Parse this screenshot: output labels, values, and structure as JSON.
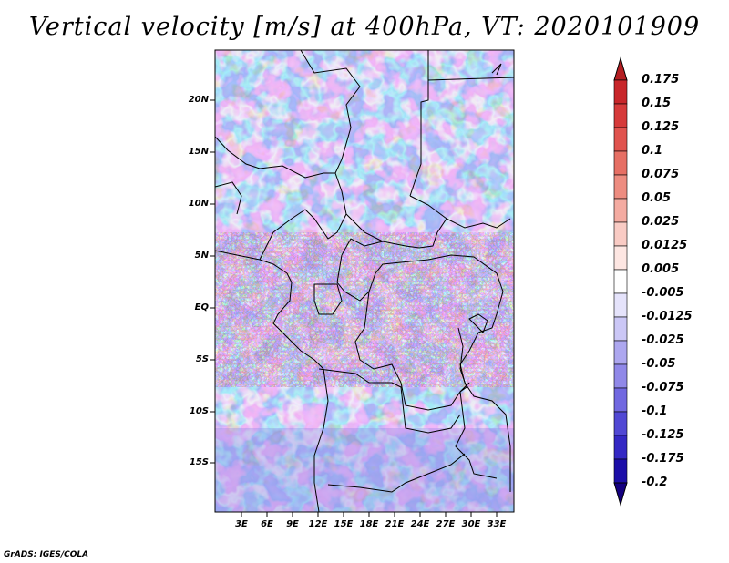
{
  "map": {
    "title": "Vertical velocity [m/s] at 400hPa, VT: 2020101909",
    "credit": "GrADS: IGES/COLA",
    "lat_labels": [
      "20N",
      "15N",
      "10N",
      "5N",
      "EQ",
      "5S",
      "10S",
      "15S"
    ],
    "lat_values": [
      20,
      15,
      10,
      5,
      0,
      -5,
      -10,
      -15
    ],
    "lon_labels": [
      "3E",
      "6E",
      "9E",
      "12E",
      "15E",
      "18E",
      "21E",
      "24E",
      "27E",
      "30E",
      "33E"
    ],
    "lon_values": [
      3,
      6,
      9,
      12,
      15,
      18,
      21,
      24,
      27,
      30,
      33
    ],
    "colorbar_labels": [
      "0.175",
      "0.15",
      "0.125",
      "0.1",
      "0.075",
      "0.05",
      "0.025",
      "0.0125",
      "0.005",
      "-0.005",
      "-0.0125",
      "-0.025",
      "-0.05",
      "-0.075",
      "-0.1",
      "-0.125",
      "-0.175",
      "-0.2"
    ],
    "colorbar_colors": [
      "#b41e22",
      "#c8262a",
      "#d63a3a",
      "#e0534e",
      "#e66f64",
      "#ed8c80",
      "#f4aba1",
      "#f9cbc4",
      "#fde6e2",
      "#ffffff",
      "#e5e3fb",
      "#cbc7f6",
      "#ada7ef",
      "#9088e8",
      "#7168e0",
      "#5148d4",
      "#3428c4",
      "#1c0ea8",
      "#140080"
    ]
  }
}
